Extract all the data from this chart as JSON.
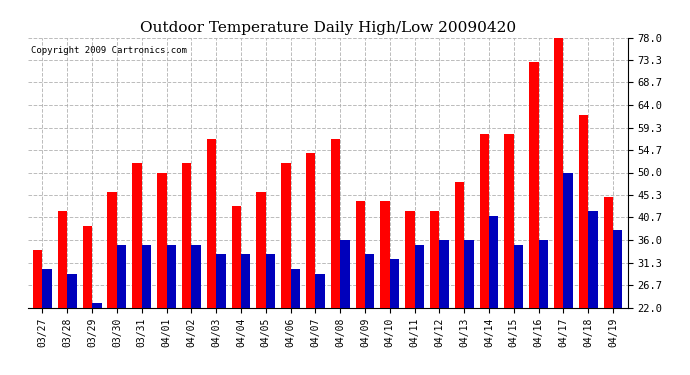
{
  "title": "Outdoor Temperature Daily High/Low 20090420",
  "copyright": "Copyright 2009 Cartronics.com",
  "categories": [
    "03/27",
    "03/28",
    "03/29",
    "03/30",
    "03/31",
    "04/01",
    "04/02",
    "04/03",
    "04/04",
    "04/05",
    "04/06",
    "04/07",
    "04/08",
    "04/09",
    "04/10",
    "04/11",
    "04/12",
    "04/13",
    "04/14",
    "04/15",
    "04/16",
    "04/17",
    "04/18",
    "04/19"
  ],
  "highs": [
    34,
    42,
    39,
    46,
    52,
    50,
    52,
    57,
    43,
    46,
    52,
    54,
    57,
    44,
    44,
    42,
    42,
    48,
    58,
    58,
    73,
    78,
    62,
    45
  ],
  "lows": [
    30,
    29,
    23,
    35,
    35,
    35,
    35,
    33,
    33,
    33,
    30,
    29,
    36,
    33,
    32,
    35,
    36,
    36,
    41,
    35,
    36,
    50,
    42,
    38
  ],
  "high_color": "#ff0000",
  "low_color": "#0000bb",
  "background_color": "#ffffff",
  "grid_color": "#aaaaaa",
  "y_ticks": [
    22.0,
    26.7,
    31.3,
    36.0,
    40.7,
    45.3,
    50.0,
    54.7,
    59.3,
    64.0,
    68.7,
    73.3,
    78.0
  ],
  "ylim": [
    22.0,
    78.0
  ],
  "title_fontsize": 11,
  "copyright_fontsize": 6.5,
  "bar_width": 0.38,
  "fig_width": 6.9,
  "fig_height": 3.75,
  "dpi": 100
}
